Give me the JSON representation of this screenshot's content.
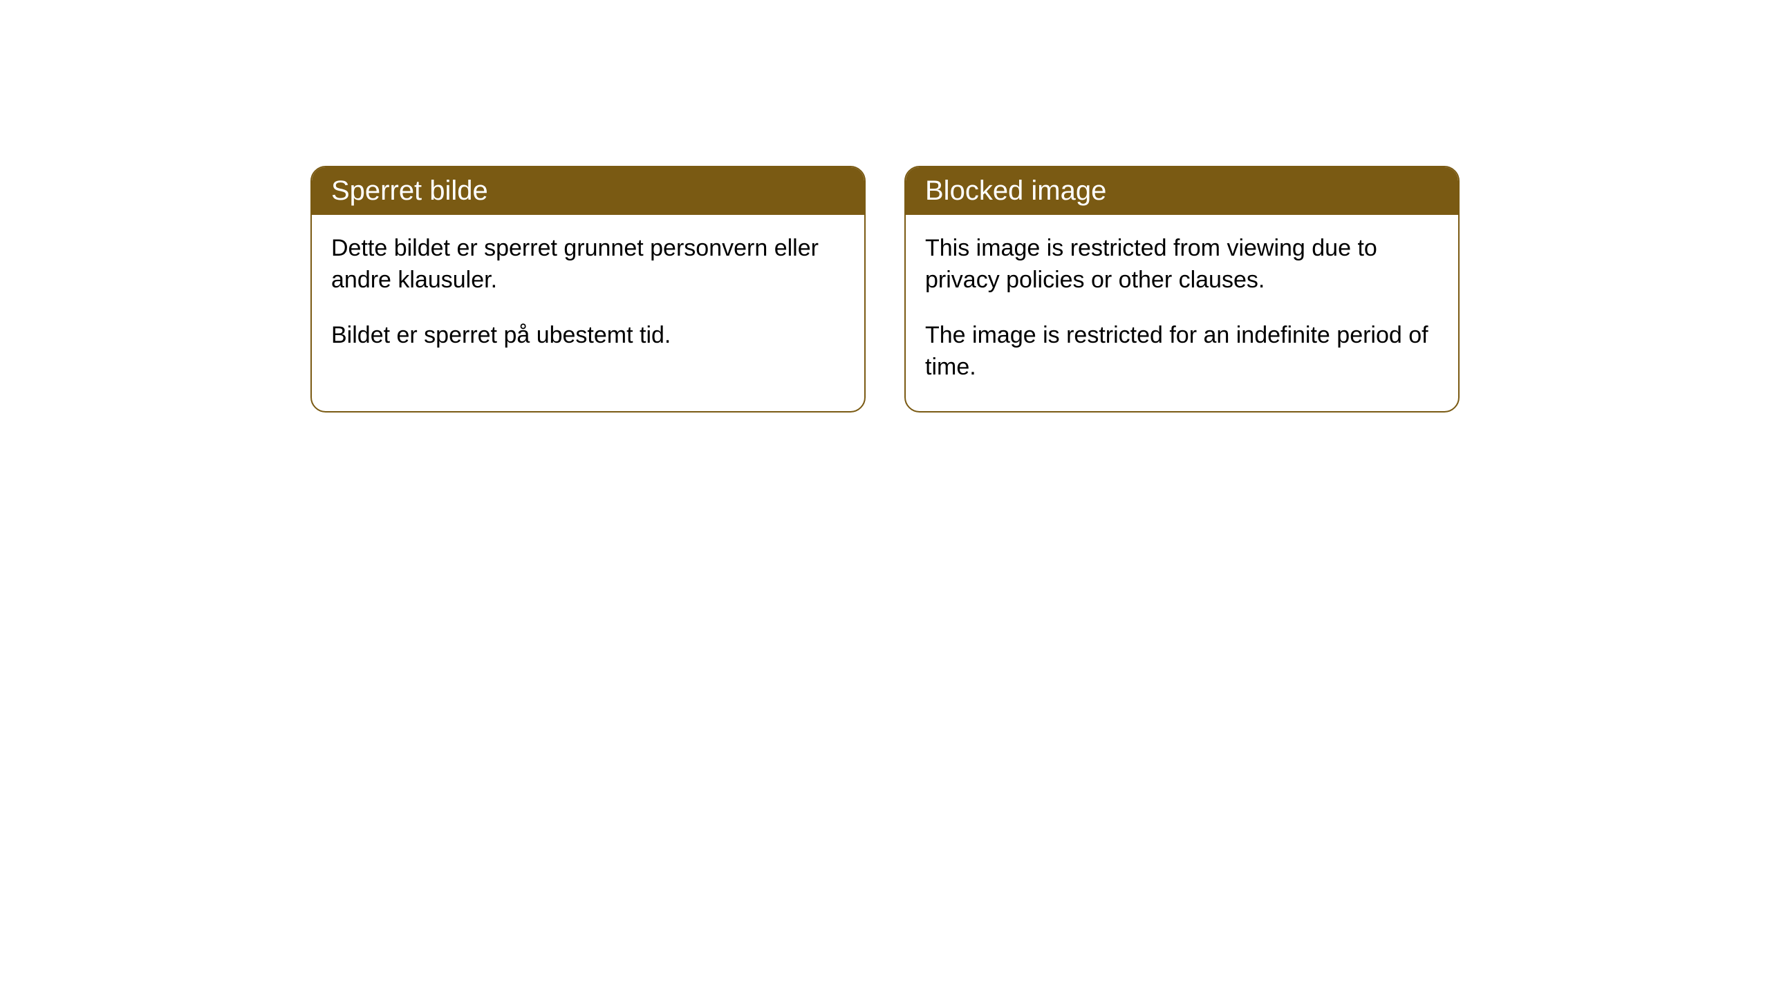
{
  "cards": [
    {
      "title": "Sperret bilde",
      "paragraph1": "Dette bildet er sperret grunnet personvern eller andre klausuler.",
      "paragraph2": "Bildet er sperret på ubestemt tid."
    },
    {
      "title": "Blocked image",
      "paragraph1": "This image is restricted from viewing due to privacy policies or other clauses.",
      "paragraph2": "The image is restricted for an indefinite period of time."
    }
  ],
  "styling": {
    "header_background": "#7a5a13",
    "header_text_color": "#ffffff",
    "border_color": "#7a5a13",
    "body_background": "#ffffff",
    "body_text_color": "#000000",
    "border_radius": 22,
    "header_font_size": 40,
    "body_font_size": 34
  }
}
